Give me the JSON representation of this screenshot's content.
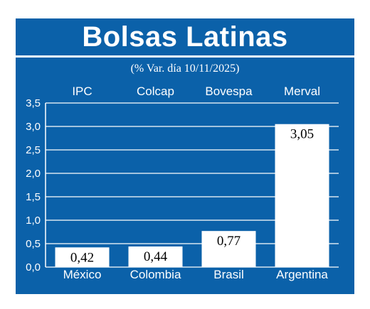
{
  "chart_data": {
    "type": "bar",
    "title": "Bolsas Latinas",
    "subtitle": "(% Var. día 10/11/2025)",
    "index_names": [
      "IPC",
      "Colcap",
      "Bovespa",
      "Merval"
    ],
    "categories": [
      "México",
      "Colombia",
      "Brasil",
      "Argentina"
    ],
    "values": [
      0.42,
      0.44,
      0.77,
      3.05
    ],
    "value_labels": [
      "0,42",
      "0,44",
      "0,77",
      "3,05"
    ],
    "ylim": [
      0,
      3.5
    ],
    "yticks": [
      0,
      0.5,
      1.0,
      1.5,
      2.0,
      2.5,
      3.0,
      3.5
    ],
    "ytick_labels": [
      "0,0",
      "0,5",
      "1,0",
      "1,5",
      "2,0",
      "2,5",
      "3,0",
      "3,5"
    ],
    "grid": true,
    "colors": {
      "background": "#0b61a9",
      "bar": "#ffffff",
      "grid": "#ffffff"
    }
  }
}
